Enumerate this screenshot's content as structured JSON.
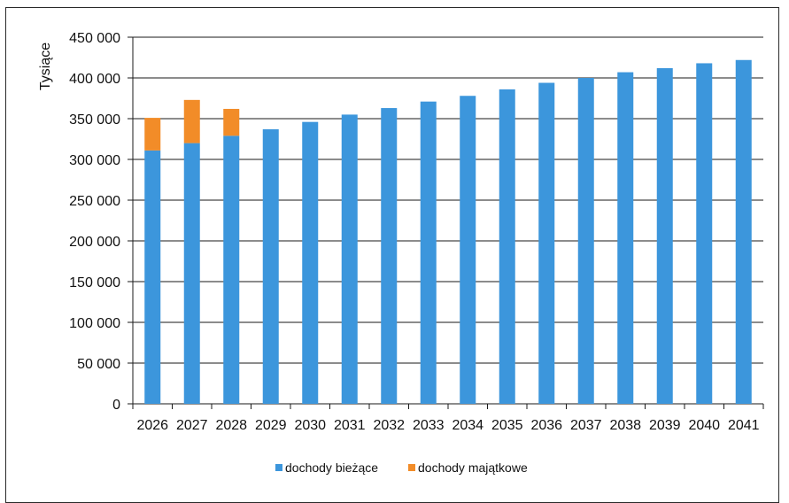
{
  "chart_data": {
    "type": "bar",
    "stacked": true,
    "ylabel": "Tysiące",
    "ylim": [
      0,
      450000
    ],
    "yticks": [
      0,
      50000,
      100000,
      150000,
      200000,
      250000,
      300000,
      350000,
      400000,
      450000
    ],
    "ytick_labels": [
      "0",
      "50 000",
      "100 000",
      "150 000",
      "200 000",
      "250 000",
      "300 000",
      "350 000",
      "400 000",
      "450 000"
    ],
    "grid": true,
    "legend": "bottom",
    "categories": [
      "2026",
      "2027",
      "2028",
      "2029",
      "2030",
      "2031",
      "2032",
      "2033",
      "2034",
      "2035",
      "2036",
      "2037",
      "2038",
      "2039",
      "2040",
      "2041"
    ],
    "series": [
      {
        "name": "dochody bieżące",
        "color": "#3c96dc",
        "values": [
          311000,
          320000,
          329000,
          337000,
          346000,
          355000,
          363000,
          371000,
          378000,
          386000,
          394000,
          400000,
          407000,
          412000,
          418000,
          422000
        ]
      },
      {
        "name": "dochody majątkowe",
        "color": "#f28c28",
        "values": [
          40000,
          53000,
          33000,
          0,
          0,
          0,
          0,
          0,
          0,
          0,
          0,
          0,
          0,
          0,
          0,
          0
        ]
      }
    ]
  }
}
